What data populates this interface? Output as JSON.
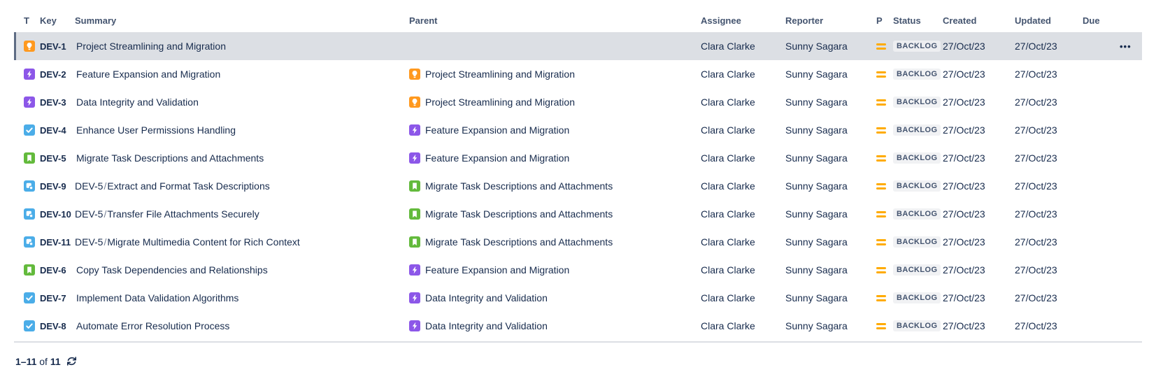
{
  "table": {
    "columns": [
      {
        "key": "type",
        "label": "T"
      },
      {
        "key": "key",
        "label": "Key"
      },
      {
        "key": "summary",
        "label": "Summary"
      },
      {
        "key": "parent",
        "label": "Parent"
      },
      {
        "key": "assignee",
        "label": "Assignee"
      },
      {
        "key": "reporter",
        "label": "Reporter"
      },
      {
        "key": "priority",
        "label": "P"
      },
      {
        "key": "status",
        "label": "Status"
      },
      {
        "key": "created",
        "label": "Created"
      },
      {
        "key": "updated",
        "label": "Updated"
      },
      {
        "key": "due",
        "label": "Due"
      },
      {
        "key": "actions",
        "label": ""
      }
    ],
    "row_actions_glyph": "•••",
    "type_colors": {
      "orange": "#FF991F",
      "purple": "#8C57E8",
      "blue": "#4BADE8",
      "green": "#63BA3C"
    },
    "priority_color": "#FFAB00",
    "selected_row_bg": "#DCDFE4",
    "rows": [
      {
        "selected": true,
        "type_icon": "lightbulb-icon",
        "type_color": "#FF991F",
        "key": "DEV-1",
        "summary": "Project Streamlining and Migration",
        "summary_prefix": "",
        "parent": null,
        "assignee": "Clara Clarke",
        "reporter": "Sunny Sagara",
        "priority": "Medium",
        "status": "BACKLOG",
        "created": "27/Oct/23",
        "updated": "27/Oct/23",
        "due": ""
      },
      {
        "selected": false,
        "type_icon": "lightning-icon",
        "type_color": "#8C57E8",
        "key": "DEV-2",
        "summary": "Feature Expansion and Migration",
        "summary_prefix": "",
        "parent": {
          "icon": "lightbulb-icon",
          "color": "#FF991F",
          "text": "Project Streamlining and Migration"
        },
        "assignee": "Clara Clarke",
        "reporter": "Sunny Sagara",
        "priority": "Medium",
        "status": "BACKLOG",
        "created": "27/Oct/23",
        "updated": "27/Oct/23",
        "due": ""
      },
      {
        "selected": false,
        "type_icon": "lightning-icon",
        "type_color": "#8C57E8",
        "key": "DEV-3",
        "summary": "Data Integrity and Validation",
        "summary_prefix": "",
        "parent": {
          "icon": "lightbulb-icon",
          "color": "#FF991F",
          "text": "Project Streamlining and Migration"
        },
        "assignee": "Clara Clarke",
        "reporter": "Sunny Sagara",
        "priority": "Medium",
        "status": "BACKLOG",
        "created": "27/Oct/23",
        "updated": "27/Oct/23",
        "due": ""
      },
      {
        "selected": false,
        "type_icon": "check-icon",
        "type_color": "#4BADE8",
        "key": "DEV-4",
        "summary": "Enhance User Permissions Handling",
        "summary_prefix": "",
        "parent": {
          "icon": "lightning-icon",
          "color": "#8C57E8",
          "text": "Feature Expansion and Migration"
        },
        "assignee": "Clara Clarke",
        "reporter": "Sunny Sagara",
        "priority": "Medium",
        "status": "BACKLOG",
        "created": "27/Oct/23",
        "updated": "27/Oct/23",
        "due": ""
      },
      {
        "selected": false,
        "type_icon": "bookmark-icon",
        "type_color": "#63BA3C",
        "key": "DEV-5",
        "summary": "Migrate Task Descriptions and Attachments",
        "summary_prefix": "",
        "parent": {
          "icon": "lightning-icon",
          "color": "#8C57E8",
          "text": "Feature Expansion and Migration"
        },
        "assignee": "Clara Clarke",
        "reporter": "Sunny Sagara",
        "priority": "Medium",
        "status": "BACKLOG",
        "created": "27/Oct/23",
        "updated": "27/Oct/23",
        "due": ""
      },
      {
        "selected": false,
        "type_icon": "subtask-icon",
        "type_color": "#4BADE8",
        "key": "DEV-9",
        "summary": "Extract and Format Task Descriptions",
        "summary_prefix": "DEV-5",
        "parent": {
          "icon": "bookmark-icon",
          "color": "#63BA3C",
          "text": "Migrate Task Descriptions and Attachments"
        },
        "assignee": "Clara Clarke",
        "reporter": "Sunny Sagara",
        "priority": "Medium",
        "status": "BACKLOG",
        "created": "27/Oct/23",
        "updated": "27/Oct/23",
        "due": ""
      },
      {
        "selected": false,
        "type_icon": "subtask-icon",
        "type_color": "#4BADE8",
        "key": "DEV-10",
        "summary": "Transfer File Attachments Securely",
        "summary_prefix": "DEV-5",
        "parent": {
          "icon": "bookmark-icon",
          "color": "#63BA3C",
          "text": "Migrate Task Descriptions and Attachments"
        },
        "assignee": "Clara Clarke",
        "reporter": "Sunny Sagara",
        "priority": "Medium",
        "status": "BACKLOG",
        "created": "27/Oct/23",
        "updated": "27/Oct/23",
        "due": ""
      },
      {
        "selected": false,
        "type_icon": "subtask-icon",
        "type_color": "#4BADE8",
        "key": "DEV-11",
        "summary": "Migrate Multimedia Content for Rich Context",
        "summary_prefix": "DEV-5",
        "parent": {
          "icon": "bookmark-icon",
          "color": "#63BA3C",
          "text": "Migrate Task Descriptions and Attachments"
        },
        "assignee": "Clara Clarke",
        "reporter": "Sunny Sagara",
        "priority": "Medium",
        "status": "BACKLOG",
        "created": "27/Oct/23",
        "updated": "27/Oct/23",
        "due": ""
      },
      {
        "selected": false,
        "type_icon": "bookmark-icon",
        "type_color": "#63BA3C",
        "key": "DEV-6",
        "summary": "Copy Task Dependencies and Relationships",
        "summary_prefix": "",
        "parent": {
          "icon": "lightning-icon",
          "color": "#8C57E8",
          "text": "Feature Expansion and Migration"
        },
        "assignee": "Clara Clarke",
        "reporter": "Sunny Sagara",
        "priority": "Medium",
        "status": "BACKLOG",
        "created": "27/Oct/23",
        "updated": "27/Oct/23",
        "due": ""
      },
      {
        "selected": false,
        "type_icon": "check-icon",
        "type_color": "#4BADE8",
        "key": "DEV-7",
        "summary": "Implement Data Validation Algorithms",
        "summary_prefix": "",
        "parent": {
          "icon": "lightning-icon",
          "color": "#8C57E8",
          "text": "Data Integrity and Validation"
        },
        "assignee": "Clara Clarke",
        "reporter": "Sunny Sagara",
        "priority": "Medium",
        "status": "BACKLOG",
        "created": "27/Oct/23",
        "updated": "27/Oct/23",
        "due": ""
      },
      {
        "selected": false,
        "type_icon": "check-icon",
        "type_color": "#4BADE8",
        "key": "DEV-8",
        "summary": "Automate Error Resolution Process",
        "summary_prefix": "",
        "parent": {
          "icon": "lightning-icon",
          "color": "#8C57E8",
          "text": "Data Integrity and Validation"
        },
        "assignee": "Clara Clarke",
        "reporter": "Sunny Sagara",
        "priority": "Medium",
        "status": "BACKLOG",
        "created": "27/Oct/23",
        "updated": "27/Oct/23",
        "due": ""
      }
    ]
  },
  "footer": {
    "range": "1–11",
    "of_label": "of",
    "total": "11",
    "refresh_icon": "refresh-icon"
  }
}
